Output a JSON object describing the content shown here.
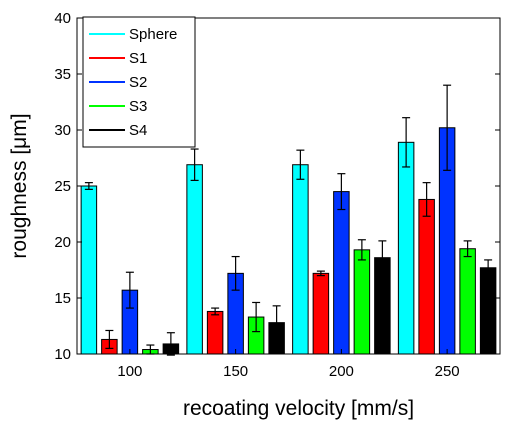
{
  "chart_data": {
    "type": "bar",
    "categories": [
      "100",
      "150",
      "200",
      "250"
    ],
    "xlabel": "recoating velocity [mm/s]",
    "ylabel": "roughness [μm]",
    "ylim": [
      10,
      40
    ],
    "yticks": [
      "10",
      "15",
      "20",
      "25",
      "30",
      "35",
      "40"
    ],
    "grid": false,
    "error_bars": true,
    "legend_position": "top-left",
    "series": [
      {
        "name": "Sphere",
        "color": "#00ffff",
        "values": [
          25.0,
          26.9,
          26.9,
          28.9
        ],
        "errors": [
          0.3,
          1.4,
          1.3,
          2.2
        ]
      },
      {
        "name": "S1",
        "color": "#ff0000",
        "values": [
          11.3,
          13.8,
          17.2,
          23.8
        ],
        "errors": [
          0.8,
          0.3,
          0.2,
          1.5
        ]
      },
      {
        "name": "S2",
        "color": "#0033ff",
        "values": [
          15.7,
          17.2,
          24.5,
          30.2
        ],
        "errors": [
          1.6,
          1.5,
          1.6,
          3.8
        ]
      },
      {
        "name": "S3",
        "color": "#00ff00",
        "values": [
          10.4,
          13.3,
          19.3,
          19.4
        ],
        "errors": [
          0.4,
          1.3,
          0.9,
          0.7
        ]
      },
      {
        "name": "S4",
        "color": "#000000",
        "values": [
          10.9,
          12.8,
          18.6,
          17.7
        ],
        "errors": [
          1.0,
          1.5,
          1.5,
          0.7
        ]
      }
    ]
  }
}
